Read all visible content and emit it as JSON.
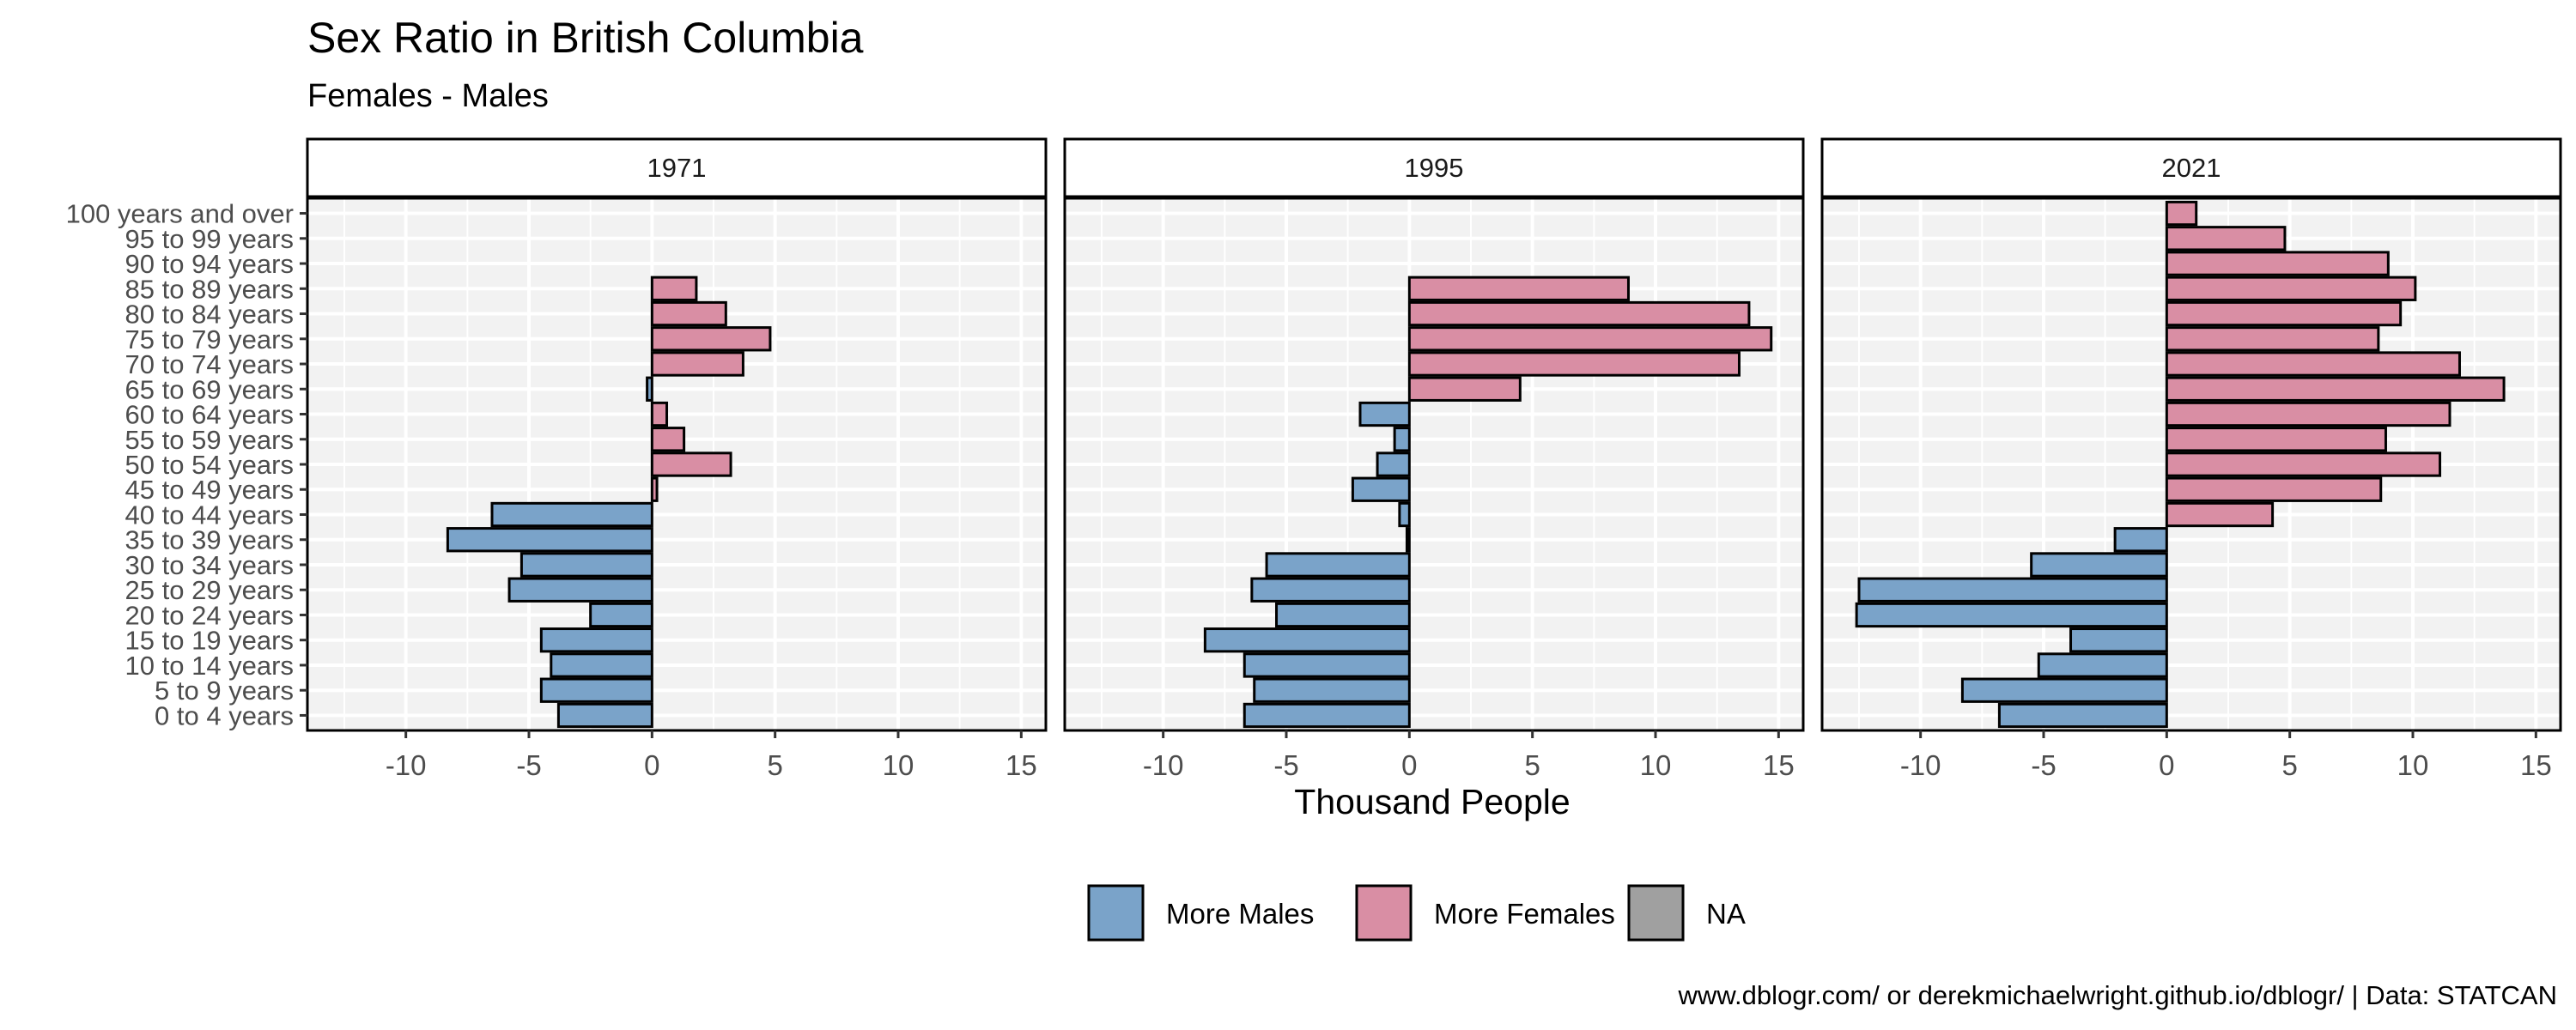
{
  "title": "Sex Ratio in British Columbia",
  "subtitle": "Females - Males",
  "xlabel": "Thousand People",
  "caption": "www.dblogr.com/ or derekmichaelwright.github.io/dblogr/ | Data: STATCAN",
  "colors": {
    "more_males": "#7aa3c9",
    "more_females": "#d98ea4",
    "na": "#a0a0a0",
    "panel_bg": "#f2f2f2",
    "grid": "#ffffff"
  },
  "legend": [
    {
      "label": "More Males",
      "color": "#7aa3c9"
    },
    {
      "label": "More Females",
      "color": "#d98ea4"
    },
    {
      "label": "NA",
      "color": "#a0a0a0"
    }
  ],
  "chart_data": {
    "type": "bar",
    "orientation": "horizontal",
    "facets": [
      "1971",
      "1995",
      "2021"
    ],
    "categories": [
      "0 to 4 years",
      "5 to 9 years",
      "10 to 14 years",
      "15 to 19 years",
      "20 to 24 years",
      "25 to 29 years",
      "30 to 34 years",
      "35 to 39 years",
      "40 to 44 years",
      "45 to 49 years",
      "50 to 54 years",
      "55 to 59 years",
      "60 to 64 years",
      "65 to 69 years",
      "70 to 74 years",
      "75 to 79 years",
      "80 to 84 years",
      "85 to 89 years",
      "90 to 94 years",
      "95 to 99 years",
      "100 years and over"
    ],
    "xlim": [
      -14,
      16
    ],
    "xticks": [
      -10,
      -5,
      0,
      5,
      10,
      15
    ],
    "grid": true,
    "legend_position": "bottom",
    "series": [
      {
        "name": "1971",
        "values": [
          -3.8,
          -4.5,
          -4.1,
          -4.5,
          -2.5,
          -5.8,
          -5.3,
          -8.3,
          -6.5,
          0.2,
          3.2,
          1.3,
          0.6,
          -0.2,
          3.7,
          4.8,
          3.0,
          1.8,
          null,
          null,
          null
        ]
      },
      {
        "name": "1995",
        "values": [
          -6.7,
          -6.3,
          -6.7,
          -8.3,
          -5.4,
          -6.4,
          -5.8,
          -0.1,
          -0.4,
          -2.3,
          -1.3,
          -0.6,
          -2.0,
          4.5,
          13.4,
          14.7,
          13.8,
          8.9,
          null,
          null,
          null
        ]
      },
      {
        "name": "2021",
        "values": [
          -6.8,
          -8.3,
          -5.2,
          -3.9,
          -12.6,
          -12.5,
          -5.5,
          -2.1,
          4.3,
          8.7,
          11.1,
          8.9,
          11.5,
          13.7,
          11.9,
          8.6,
          9.5,
          10.1,
          9.0,
          4.8,
          1.2
        ]
      }
    ]
  }
}
